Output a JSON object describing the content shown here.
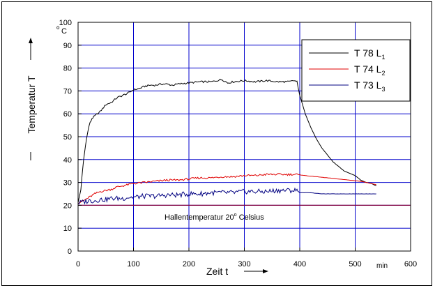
{
  "chart_data": {
    "type": "line",
    "title": "",
    "ylabel": "Temperatur T",
    "xlabel": "Zeit t",
    "x_unit": "min",
    "y_unit_super": "o",
    "y_unit": "C",
    "xlim": [
      0,
      600
    ],
    "ylim": [
      0,
      100
    ],
    "xticks": [
      0,
      100,
      200,
      300,
      400,
      500,
      600
    ],
    "yticks": [
      0,
      10,
      20,
      30,
      40,
      50,
      60,
      70,
      80,
      90,
      100
    ],
    "grid": true,
    "legend_position": "top-right",
    "reference_line": {
      "y": 20,
      "label_pre": "Hallentemperatur 20",
      "label_super": "o",
      "label_post": " Celsius",
      "color": "#800040"
    },
    "series": [
      {
        "name": "T 78",
        "legend_main": "T 78  L",
        "legend_sub": "1",
        "color": "#000000",
        "x": [
          0,
          5,
          10,
          15,
          20,
          25,
          30,
          40,
          50,
          60,
          70,
          80,
          90,
          100,
          110,
          120,
          130,
          140,
          150,
          160,
          170,
          180,
          200,
          220,
          240,
          260,
          270,
          280,
          300,
          320,
          340,
          360,
          380,
          390,
          395,
          400,
          410,
          420,
          430,
          440,
          450,
          460,
          470,
          480,
          490,
          500,
          510,
          520,
          530,
          538
        ],
        "y": [
          21,
          27,
          40,
          49,
          55,
          58,
          59,
          61,
          64,
          65,
          67,
          68,
          69,
          70.5,
          71,
          72,
          72.5,
          72.5,
          73,
          73,
          72.5,
          73,
          73.5,
          74,
          74,
          75,
          73.5,
          74,
          74.5,
          74,
          74.5,
          74,
          74,
          74.5,
          74,
          68,
          60,
          54,
          49,
          45,
          42,
          39,
          37,
          35,
          34,
          33,
          31,
          30,
          29.5,
          28.5
        ]
      },
      {
        "name": "T 74",
        "legend_main": "T 74  L",
        "legend_sub": "2",
        "color": "#e00000",
        "x": [
          0,
          10,
          20,
          30,
          40,
          50,
          60,
          70,
          80,
          90,
          100,
          120,
          140,
          160,
          180,
          200,
          220,
          240,
          260,
          280,
          300,
          320,
          340,
          360,
          380,
          395,
          410,
          430,
          450,
          470,
          490,
          510,
          530,
          538
        ],
        "y": [
          21,
          22,
          23.5,
          25,
          26,
          26.5,
          27,
          28,
          28.5,
          29,
          29.5,
          30,
          30.5,
          31,
          31,
          31.5,
          32,
          32,
          32.5,
          32.5,
          33,
          33,
          33.5,
          33.5,
          33.5,
          33.5,
          33,
          32.5,
          32,
          31.5,
          31,
          30.5,
          29.5,
          29
        ]
      },
      {
        "name": "T 73",
        "legend_main": "T 73  L",
        "legend_sub": "3",
        "color": "#000080",
        "x": [
          0,
          10,
          20,
          30,
          40,
          50,
          60,
          70,
          80,
          90,
          100,
          120,
          140,
          160,
          180,
          200,
          220,
          240,
          260,
          280,
          300,
          320,
          340,
          360,
          380,
          395,
          400,
          420,
          440,
          460,
          480,
          500,
          520,
          538
        ],
        "y": [
          21,
          21.5,
          22,
          22,
          22.5,
          22.5,
          23,
          23,
          23,
          23.5,
          23.5,
          24,
          24,
          24.5,
          24.5,
          25,
          25,
          25.5,
          25.5,
          25.5,
          26,
          26,
          26,
          26.5,
          26.5,
          26.5,
          25.5,
          25.5,
          25,
          25,
          25,
          25,
          25,
          25
        ]
      }
    ]
  }
}
